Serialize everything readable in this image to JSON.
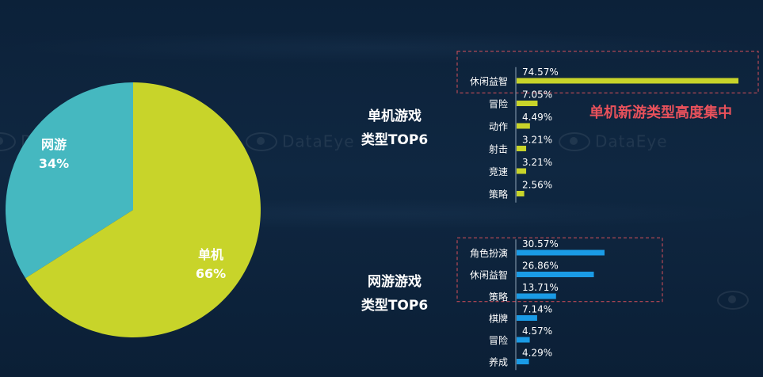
{
  "chart_data": [
    {
      "type": "pie",
      "slices": [
        {
          "name": "网游",
          "value": 34,
          "label": "34%",
          "color": "#45b8c0"
        },
        {
          "name": "单机",
          "value": 66,
          "label": "66%",
          "color": "#c8d42a"
        }
      ]
    },
    {
      "type": "bar",
      "orientation": "horizontal",
      "title_lines": [
        "单机游戏",
        "类型TOP6"
      ],
      "categories": [
        "休闲益智",
        "冒险",
        "动作",
        "射击",
        "竞速",
        "策略"
      ],
      "values": [
        74.57,
        7.05,
        4.49,
        3.21,
        3.21,
        2.56
      ],
      "value_labels": [
        "74.57%",
        "7.05%",
        "4.49%",
        "3.21%",
        "3.21%",
        "2.56%"
      ],
      "color": "#c8d42a",
      "highlight_top": 1,
      "annotation": "单机新游类型高度集中"
    },
    {
      "type": "bar",
      "orientation": "horizontal",
      "title_lines": [
        "网游游戏",
        "类型TOP6"
      ],
      "categories": [
        "角色扮演",
        "休闲益智",
        "策略",
        "棋牌",
        "冒险",
        "养成"
      ],
      "values": [
        30.57,
        26.86,
        13.71,
        7.14,
        4.57,
        4.29
      ],
      "value_labels": [
        "30.57%",
        "26.86%",
        "13.71%",
        "7.14%",
        "4.57%",
        "4.29%"
      ],
      "color": "#1a9be6",
      "highlight_top": 3
    }
  ],
  "watermark": "DataEye",
  "colors": {
    "highlight_border": "#d8505a",
    "axis": "#8fa4b8"
  }
}
